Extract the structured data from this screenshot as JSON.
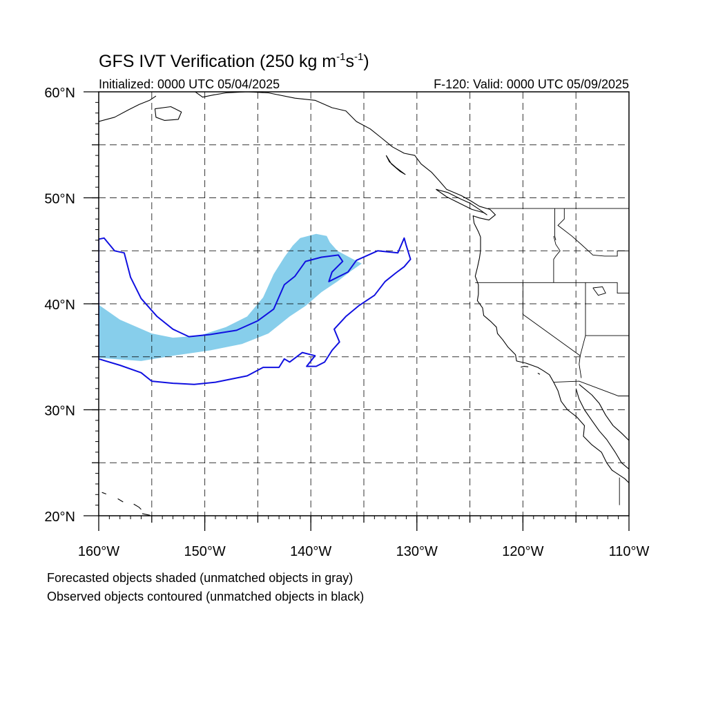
{
  "title": {
    "main": "GFS IVT Verification (250 kg m",
    "exp1": "-1",
    "mid": "s",
    "exp2": "-1",
    "close": ")"
  },
  "subtitle_left": "Initialized: 0000 UTC 05/04/2025",
  "subtitle_right": "F-120: Valid: 0000 UTC 05/09/2025",
  "notes": [
    "Forecasted objects shaded (unmatched objects in gray)",
    "Observed objects contoured (unmatched objects in black)"
  ],
  "colors": {
    "forecast_matched_fill": "#87ceeb",
    "observed_matched_contour": "#1010e0",
    "coastline": "#000000",
    "grid": "#000000"
  },
  "map_data": {
    "projection": "equirectangular",
    "lon_range": [
      -160,
      -110
    ],
    "lat_range": [
      20,
      60
    ],
    "grid_dashed": true,
    "lon_ticks": [
      {
        "lon": -160,
        "label": "160°W"
      },
      {
        "lon": -150,
        "label": "150°W"
      },
      {
        "lon": -140,
        "label": "140°W"
      },
      {
        "lon": -130,
        "label": "130°W"
      },
      {
        "lon": -120,
        "label": "120°W"
      },
      {
        "lon": -110,
        "label": "110°W"
      }
    ],
    "lat_ticks": [
      {
        "lat": 20,
        "label": "20°N"
      },
      {
        "lat": 30,
        "label": "30°N"
      },
      {
        "lat": 40,
        "label": "40°N"
      },
      {
        "lat": 50,
        "label": "50°N"
      },
      {
        "lat": 60,
        "label": "60°N"
      }
    ],
    "forecast_object": [
      [
        -160,
        39.9
      ],
      [
        -158,
        38.5
      ],
      [
        -155,
        37.2
      ],
      [
        -153,
        36.8
      ],
      [
        -150.5,
        37
      ],
      [
        -148,
        37.8
      ],
      [
        -146,
        38.8
      ],
      [
        -144.5,
        40.6
      ],
      [
        -143.5,
        42.8
      ],
      [
        -142.5,
        44.4
      ],
      [
        -141.7,
        45.5
      ],
      [
        -141,
        46.2
      ],
      [
        -139.5,
        46.6
      ],
      [
        -138.5,
        46.4
      ],
      [
        -138.2,
        45.8
      ],
      [
        -137.5,
        45
      ],
      [
        -136,
        44.2
      ],
      [
        -135.2,
        43.8
      ],
      [
        -136.2,
        43.1
      ],
      [
        -137.5,
        42.1
      ],
      [
        -139,
        41.1
      ],
      [
        -140.5,
        39.8
      ],
      [
        -142,
        38.8
      ],
      [
        -144,
        37.2
      ],
      [
        -146.5,
        36.2
      ],
      [
        -149.5,
        35.6
      ],
      [
        -153,
        35.1
      ],
      [
        -156,
        34.6
      ],
      [
        -160,
        34.9
      ]
    ],
    "observed_objects": [
      [
        [
          -160,
          46.1
        ],
        [
          -159.5,
          46.2
        ],
        [
          -158.5,
          45
        ],
        [
          -157.6,
          44.8
        ],
        [
          -157,
          42.5
        ],
        [
          -156,
          40.5
        ],
        [
          -154.5,
          38.8
        ],
        [
          -153,
          37.6
        ],
        [
          -151.5,
          36.9
        ],
        [
          -149.5,
          37.1
        ],
        [
          -147,
          37.5
        ],
        [
          -145,
          38.4
        ],
        [
          -143.5,
          39.5
        ],
        [
          -142.5,
          41.8
        ],
        [
          -141.5,
          42.6
        ],
        [
          -140.5,
          44
        ],
        [
          -139,
          44.4
        ],
        [
          -137.4,
          44.6
        ],
        [
          -137,
          44
        ],
        [
          -138,
          43
        ],
        [
          -138.3,
          42.1
        ],
        [
          -136.5,
          43
        ],
        [
          -135.7,
          44.1
        ],
        [
          -133.7,
          45
        ],
        [
          -131.8,
          44.8
        ],
        [
          -131.2,
          46.2
        ],
        [
          -131,
          45.5
        ],
        [
          -130.6,
          44.2
        ],
        [
          -131.2,
          43.5
        ],
        [
          -132,
          42.9
        ],
        [
          -133,
          42.1
        ],
        [
          -134,
          40.8
        ],
        [
          -135.5,
          39.8
        ],
        [
          -136.7,
          38.8
        ],
        [
          -137.8,
          37.6
        ],
        [
          -137.3,
          36.4
        ],
        [
          -138,
          35.6
        ],
        [
          -138.7,
          34.5
        ],
        [
          -139.5,
          34.1
        ],
        [
          -140.4,
          34.1
        ],
        [
          -139.6,
          35.1
        ],
        [
          -140.8,
          35.4
        ],
        [
          -142,
          34.5
        ],
        [
          -142.5,
          34.8
        ],
        [
          -143,
          34
        ],
        [
          -144.5,
          34
        ],
        [
          -146,
          33.2
        ],
        [
          -149,
          32.6
        ],
        [
          -151,
          32.4
        ],
        [
          -153,
          32.5
        ],
        [
          -155,
          32.7
        ],
        [
          -156,
          33.5
        ],
        [
          -158,
          34.2
        ],
        [
          -160,
          34.8
        ]
      ]
    ],
    "coastlines": [
      [
        [
          -160,
          57.2
        ],
        [
          -158.5,
          57.6
        ],
        [
          -157.2,
          58.3
        ],
        [
          -156.2,
          58.8
        ],
        [
          -155.2,
          59.2
        ],
        [
          -154.6,
          59.6
        ]
      ],
      [
        [
          -154.7,
          58.4
        ],
        [
          -153.2,
          58.6
        ],
        [
          -152.2,
          58.1
        ],
        [
          -152.5,
          57.4
        ],
        [
          -153.8,
          57.3
        ],
        [
          -154.6,
          57.6
        ],
        [
          -154.7,
          58.4
        ]
      ],
      [
        [
          -150.9,
          60
        ],
        [
          -150.2,
          59.5
        ],
        [
          -149.2,
          59.7
        ],
        [
          -148,
          59.9
        ],
        [
          -146,
          60
        ],
        [
          -144,
          59.9
        ],
        [
          -141.5,
          59.4
        ],
        [
          -139.6,
          59.2
        ],
        [
          -138,
          58.5
        ],
        [
          -136.7,
          58.2
        ],
        [
          -135.7,
          57.2
        ],
        [
          -134.4,
          56.5
        ],
        [
          -133.4,
          55.7
        ],
        [
          -132.3,
          54.8
        ],
        [
          -131.2,
          54.2
        ],
        [
          -130.2,
          54
        ],
        [
          -129.6,
          53.2
        ],
        [
          -128.6,
          52.4
        ],
        [
          -127.8,
          51.5
        ],
        [
          -127.2,
          50.8
        ],
        [
          -125.8,
          50.2
        ],
        [
          -124.9,
          49.7
        ],
        [
          -124.1,
          49.2
        ],
        [
          -123.1,
          48.9
        ],
        [
          -122.6,
          48.4
        ],
        [
          -123.2,
          47.9
        ],
        [
          -124.1,
          48.1
        ],
        [
          -124.7,
          48.3
        ],
        [
          -124.6,
          47.6
        ],
        [
          -124.2,
          46.8
        ],
        [
          -124,
          46.3
        ],
        [
          -124,
          45
        ],
        [
          -124.1,
          44.3
        ],
        [
          -124.3,
          43.4
        ],
        [
          -124.5,
          42.6
        ],
        [
          -124.2,
          41.8
        ],
        [
          -124.2,
          40.9
        ],
        [
          -124.3,
          40.3
        ],
        [
          -123.8,
          39.6
        ],
        [
          -123.7,
          38.9
        ],
        [
          -123,
          38.3
        ],
        [
          -122.5,
          37.8
        ],
        [
          -122.4,
          37.2
        ],
        [
          -121.9,
          36.6
        ],
        [
          -121.4,
          35.9
        ],
        [
          -120.7,
          35.2
        ],
        [
          -120.6,
          34.6
        ],
        [
          -119.7,
          34.4
        ],
        [
          -118.6,
          34
        ],
        [
          -118.1,
          33.7
        ],
        [
          -117.5,
          33.3
        ],
        [
          -117.1,
          32.6
        ],
        [
          -116.7,
          31.8
        ],
        [
          -116.4,
          30.8
        ],
        [
          -115.8,
          30
        ],
        [
          -114.9,
          29.3
        ],
        [
          -114.2,
          28.5
        ],
        [
          -114.3,
          27.5
        ],
        [
          -113.5,
          26.7
        ],
        [
          -112.6,
          26
        ],
        [
          -112.1,
          25
        ],
        [
          -111.6,
          24.3
        ],
        [
          -110.4,
          23.5
        ],
        [
          -110,
          23.1
        ]
      ],
      [
        [
          -115,
          32
        ],
        [
          -114.7,
          31
        ],
        [
          -114.2,
          30
        ],
        [
          -113.5,
          29
        ],
        [
          -112.8,
          28
        ],
        [
          -112.1,
          27.2
        ],
        [
          -111.3,
          26
        ],
        [
          -110.7,
          25
        ],
        [
          -110,
          24.4
        ]
      ],
      [
        [
          -114.7,
          32.4
        ],
        [
          -113.5,
          31.4
        ],
        [
          -112.8,
          30.6
        ],
        [
          -112.2,
          29.5
        ],
        [
          -111.5,
          28.5
        ],
        [
          -110.7,
          27.8
        ],
        [
          -110,
          27.1
        ]
      ],
      [
        [
          -128.2,
          50.8
        ],
        [
          -127.1,
          50.5
        ],
        [
          -125.9,
          49.9
        ],
        [
          -125,
          49.5
        ],
        [
          -124.1,
          48.9
        ],
        [
          -123.4,
          48.4
        ],
        [
          -123.7,
          48.6
        ],
        [
          -124.8,
          48.9
        ],
        [
          -125.8,
          49.4
        ],
        [
          -127.2,
          50.1
        ],
        [
          -128.2,
          50.8
        ]
      ],
      [
        [
          -132.9,
          54
        ],
        [
          -132.4,
          53.2
        ],
        [
          -131.6,
          52.5
        ],
        [
          -131.1,
          52.2
        ],
        [
          -131.9,
          52.8
        ],
        [
          -132.6,
          53.4
        ],
        [
          -132.9,
          54
        ]
      ],
      [
        [
          -119.5,
          34.05
        ],
        [
          -119.9,
          34.1
        ],
        [
          -120.2,
          34.02
        ]
      ],
      [
        [
          -118.6,
          33.45
        ],
        [
          -118.4,
          33.35
        ]
      ],
      [
        [
          -155.9,
          20.2
        ],
        [
          -155.2,
          20.05
        ],
        [
          -155.5,
          19.7
        ]
      ],
      [
        [
          -156.7,
          21.1
        ],
        [
          -156.2,
          20.8
        ],
        [
          -156,
          20.6
        ]
      ],
      [
        [
          -158.2,
          21.6
        ],
        [
          -157.7,
          21.3
        ]
      ],
      [
        [
          -159.7,
          22.2
        ],
        [
          -159.3,
          22.05
        ]
      ]
    ],
    "borders": [
      [
        [
          -123.3,
          49
        ],
        [
          -110,
          49
        ]
      ],
      [
        [
          -124.5,
          42
        ],
        [
          -111.1,
          42
        ],
        [
          -111.1,
          41
        ],
        [
          -110,
          41
        ]
      ],
      [
        [
          -120,
          42
        ],
        [
          -120,
          39
        ],
        [
          -114.6,
          35.1
        ]
      ],
      [
        [
          -117.1,
          46.4
        ],
        [
          -116.9,
          45.6
        ],
        [
          -116.5,
          45
        ],
        [
          -116.9,
          44.5
        ],
        [
          -117.1,
          44.2
        ],
        [
          -117.1,
          42
        ]
      ],
      [
        [
          -117,
          49
        ],
        [
          -117,
          46.4
        ],
        [
          -116.9,
          46
        ]
      ],
      [
        [
          -116.1,
          49
        ],
        [
          -116.1,
          48
        ],
        [
          -116.7,
          47.4
        ],
        [
          -115.4,
          46.4
        ],
        [
          -114.5,
          45.6
        ],
        [
          -113.4,
          44.6
        ],
        [
          -112.3,
          44.5
        ],
        [
          -111.1,
          44.5
        ],
        [
          -111.1,
          45
        ],
        [
          -110,
          45
        ]
      ],
      [
        [
          -114.1,
          42
        ],
        [
          -114.1,
          37
        ],
        [
          -114.6,
          35.1
        ],
        [
          -114.7,
          34.3
        ],
        [
          -114.5,
          33
        ]
      ],
      [
        [
          -114.1,
          37
        ],
        [
          -110,
          37
        ]
      ],
      [
        [
          -117.1,
          32.6
        ],
        [
          -114.7,
          32.7
        ],
        [
          -111,
          31.3
        ],
        [
          -110,
          31.3
        ]
      ],
      [
        [
          -110.9,
          23.6
        ],
        [
          -110.9,
          21
        ]
      ]
    ],
    "lakes": [
      [
        [
          -113.4,
          41.5
        ],
        [
          -112.5,
          41.6
        ],
        [
          -112.2,
          41
        ],
        [
          -112.9,
          40.8
        ],
        [
          -113.4,
          41.5
        ]
      ]
    ]
  }
}
